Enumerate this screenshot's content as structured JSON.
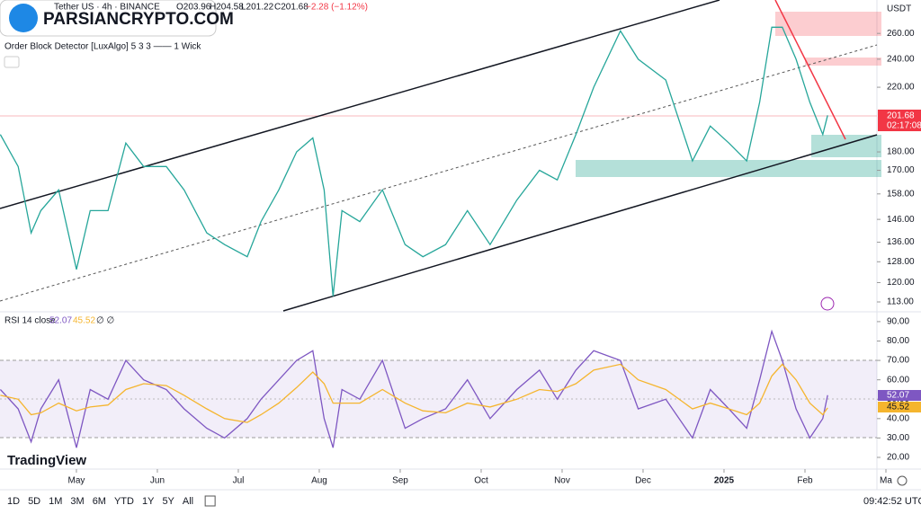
{
  "header": {
    "symbol": "Tether US · 4h · BINANCE",
    "open": "O203.96",
    "high": "H204.58",
    "low": "L201.22",
    "close": "C201.68",
    "change": "−2.28 (−1.12%)",
    "indicator": "Order Block Detector [LuxAlgo] 5 3 3 —— 1 Wick",
    "currency": "USDT",
    "countdown": "02:17:08",
    "rsi_label": "RSI 14 close",
    "rsi_extra": "∅ ∅",
    "watermark": "PARSIANCRYPTO.COM",
    "brand": "TradingView",
    "time": "09:42:52 UTC",
    "ranges": [
      "1D",
      "5D",
      "1M",
      "3M",
      "6M",
      "YTD",
      "1Y",
      "5Y",
      "All"
    ]
  },
  "chart_data": [
    {
      "type": "line",
      "log_scale": true,
      "x": [
        0.06,
        0.28,
        0.44,
        0.56,
        0.78,
        1.0,
        1.17,
        1.39,
        1.61,
        1.83,
        2.11,
        2.33,
        2.61,
        2.83,
        3.11,
        3.28,
        3.5,
        3.72,
        3.92,
        4.06,
        4.17,
        4.28,
        4.5,
        4.78,
        5.06,
        5.28,
        5.56,
        5.83,
        6.11,
        6.44,
        6.72,
        6.94,
        7.17,
        7.39,
        7.72,
        7.94,
        8.28,
        8.61,
        8.83,
        9.06,
        9.28,
        9.44,
        9.59,
        9.72,
        9.89,
        10.06,
        10.22,
        10.28
      ],
      "series": [
        {
          "color": "#26a69a",
          "values": [
            190,
            172,
            140,
            150,
            160,
            125,
            150,
            150,
            185,
            172,
            172,
            160,
            140,
            135,
            130,
            145,
            160,
            180,
            188,
            160,
            115,
            150,
            145,
            160,
            135,
            130,
            135,
            150,
            135,
            155,
            170,
            165,
            190,
            220,
            262,
            240,
            225,
            175,
            195,
            185,
            175,
            210,
            265,
            265,
            240,
            210,
            190,
            201.68
          ]
        }
      ],
      "xlim": [
        0.056,
        10.889
      ],
      "xticks": [
        {
          "value": 1,
          "label": "May"
        },
        {
          "value": 2,
          "label": "Jun"
        },
        {
          "value": 3,
          "label": "Jul"
        },
        {
          "value": 4,
          "label": "Aug"
        },
        {
          "value": 5,
          "label": "Sep"
        },
        {
          "value": 6,
          "label": "Oct"
        },
        {
          "value": 7,
          "label": "Nov"
        },
        {
          "value": 8,
          "label": "Dec"
        },
        {
          "value": 9,
          "label": "2025"
        },
        {
          "value": 10,
          "label": "Feb"
        },
        {
          "value": 11,
          "label": "Ma"
        }
      ],
      "ylim": [
        110.2,
        288.4
      ],
      "yticks": [
        {
          "value": 113,
          "label": "113.00"
        },
        {
          "value": 120,
          "label": "120.00"
        },
        {
          "value": 128,
          "label": "128.00"
        },
        {
          "value": 136,
          "label": "136.00"
        },
        {
          "value": 146,
          "label": "146.00"
        },
        {
          "value": 158,
          "label": "158.00"
        },
        {
          "value": 170,
          "label": "170.00"
        },
        {
          "value": 180,
          "label": "180.00"
        },
        {
          "value": 220,
          "label": "220.00"
        },
        {
          "value": 240,
          "label": "240.00"
        },
        {
          "value": 260,
          "label": "260.00"
        }
      ]
    },
    {
      "type": "line",
      "series": [
        {
          "name": "RSI",
          "color": "#7e57c2",
          "values": [
            55,
            45,
            28,
            45,
            60,
            25,
            55,
            50,
            70,
            60,
            55,
            45,
            35,
            30,
            40,
            50,
            60,
            70,
            75,
            40,
            25,
            55,
            50,
            70,
            35,
            40,
            45,
            60,
            40,
            55,
            65,
            50,
            65,
            75,
            70,
            45,
            50,
            30,
            55,
            45,
            35,
            60,
            85,
            70,
            45,
            30,
            40,
            52.07
          ]
        },
        {
          "name": "MA",
          "color": "#f5b52e",
          "values": [
            52,
            50,
            42,
            43,
            48,
            44,
            46,
            47,
            55,
            58,
            57,
            52,
            45,
            40,
            38,
            42,
            48,
            56,
            64,
            58,
            48,
            48,
            48,
            55,
            48,
            44,
            43,
            48,
            46,
            50,
            55,
            54,
            58,
            65,
            68,
            60,
            55,
            45,
            48,
            45,
            42,
            48,
            62,
            68,
            60,
            48,
            42,
            45.52
          ]
        }
      ],
      "ylim": [
        14.9,
        94.6
      ],
      "yticks": [
        {
          "value": 20,
          "label": "20.00"
        },
        {
          "value": 30,
          "label": "30.00"
        },
        {
          "value": 40,
          "label": "40.00"
        },
        {
          "value": 50,
          "label": "50.00"
        },
        {
          "value": 60,
          "label": "60.00"
        },
        {
          "value": 70,
          "label": "70.00"
        },
        {
          "value": 80,
          "label": "80.00"
        },
        {
          "value": 90,
          "label": "90.00"
        }
      ]
    }
  ]
}
